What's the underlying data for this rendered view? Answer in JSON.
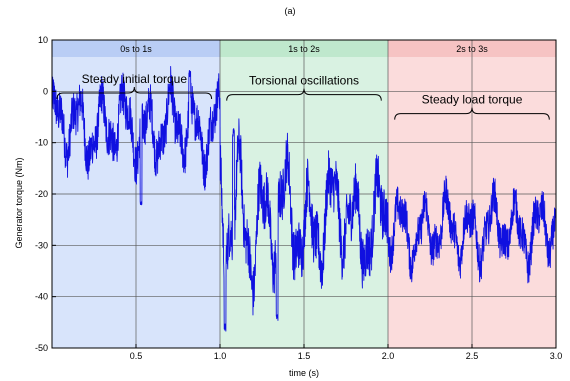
{
  "chart_data": {
    "type": "line",
    "title": "(a)",
    "xlabel": "time (s)",
    "ylabel": "Generator torque (Nm)",
    "xlim": [
      0,
      3
    ],
    "ylim": [
      -50,
      10
    ],
    "xticks": [
      0.5,
      1.0,
      1.5,
      2.0,
      2.5,
      3.0
    ],
    "xtick_labels": [
      "0.5",
      "1.0",
      "1.5",
      "2.0",
      "2.5",
      "3.0"
    ],
    "yticks": [
      10,
      0,
      -10,
      -20,
      -30,
      -40,
      -50
    ],
    "ytick_labels": [
      "10",
      "0",
      "-10",
      "-20",
      "-30",
      "-40",
      "-50"
    ],
    "grid": true,
    "series_color": "#1010e0",
    "bands": [
      {
        "label": "0s to 1s",
        "x": [
          0,
          1
        ],
        "color": "#d8e4fb",
        "header_color": "#b9cdf5"
      },
      {
        "label": "1s to 2s",
        "x": [
          1,
          2
        ],
        "color": "#d9f2e2",
        "header_color": "#bfe8cd"
      },
      {
        "label": "2s to 3s",
        "x": [
          2,
          3
        ],
        "color": "#fbdcdc",
        "header_color": "#f6c3c3"
      }
    ],
    "annotations": [
      {
        "text": "Steady initial torque",
        "x_range": [
          0.03,
          0.95
        ],
        "y": -1.5
      },
      {
        "text": "Torsional oscillations",
        "x_range": [
          1.04,
          1.96
        ],
        "y": -1.8
      },
      {
        "text": "Steady load torque",
        "x_range": [
          2.04,
          2.96
        ],
        "y": -5.5
      }
    ],
    "series": [
      {
        "segments": [
          {
            "x": [
              0,
              1
            ],
            "mean": -7,
            "amplitude": 5,
            "noise": 4,
            "decay": 0
          },
          {
            "x": [
              1,
              2
            ],
            "mean": -25,
            "amplitude": 11,
            "noise": 5,
            "decay": 1.6
          },
          {
            "x": [
              2,
              3
            ],
            "mean": -27,
            "amplitude": 4.5,
            "noise": 3.5,
            "decay": 0
          }
        ],
        "extremes": [
          {
            "x": 0.53,
            "y": -22
          },
          {
            "x": 0.82,
            "y": 3.5
          },
          {
            "x": 1.03,
            "y": -46
          },
          {
            "x": 1.34,
            "y": -44
          },
          {
            "x": 1.08,
            "y": -8
          }
        ]
      }
    ]
  }
}
